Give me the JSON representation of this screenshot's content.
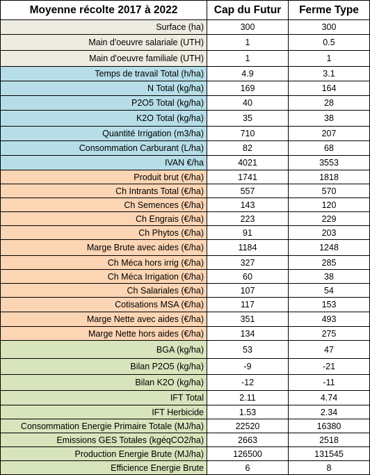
{
  "header": {
    "label_col": "Moyenne récolte 2017 à 2022",
    "col_a": "Cap du Futur",
    "col_b": "Ferme Type"
  },
  "colors": {
    "grey": "#eeece1",
    "blue": "#b7dee8",
    "orange": "#fcd5b4",
    "green": "#d8e4bc"
  },
  "rows": [
    {
      "label": "Surface (ha)",
      "a": "300",
      "b": "300"
    },
    {
      "label": "Main d'oeuvre salariale (UTH)",
      "a": "1",
      "b": "0.5"
    },
    {
      "label": "Main d'oeuvre familiale (UTH)",
      "a": "1",
      "b": "1"
    },
    {
      "label": "Temps de travail Total (h/ha)",
      "a": "4.9",
      "b": "3.1"
    },
    {
      "label": "N Total (kg/ha)",
      "a": "169",
      "b": "164"
    },
    {
      "label": "P2O5 Total (kg/ha)",
      "a": "40",
      "b": "28"
    },
    {
      "label": "K2O Total (kg/ha)",
      "a": "35",
      "b": "38"
    },
    {
      "label": "Quantité Irrigation (m3/ha)",
      "a": "710",
      "b": "207"
    },
    {
      "label": "Consommation Carburant (L/ha)",
      "a": "82",
      "b": "68"
    },
    {
      "label": "IVAN €/ha",
      "a": "4021",
      "b": "3553"
    },
    {
      "label": "Produit brut (€/ha)",
      "a": "1741",
      "b": "1818"
    },
    {
      "label": "Ch Intrants Total (€/ha)",
      "a": "557",
      "b": "570"
    },
    {
      "label": "Ch Semences (€/ha)",
      "a": "143",
      "b": "120"
    },
    {
      "label": "Ch Engrais (€/ha)",
      "a": "223",
      "b": "229"
    },
    {
      "label": "Ch Phytos (€/ha)",
      "a": "91",
      "b": "203"
    },
    {
      "label": "Marge Brute avec aides (€/ha)",
      "a": "1184",
      "b": "1248"
    },
    {
      "label": "Ch Méca hors irrig (€/ha)",
      "a": "327",
      "b": "285"
    },
    {
      "label": "Ch Méca Irrigation (€/ha)",
      "a": "60",
      "b": "38"
    },
    {
      "label": "Ch Salariales (€/ha)",
      "a": "107",
      "b": "54"
    },
    {
      "label": "Cotisations MSA (€/ha)",
      "a": "117",
      "b": "153"
    },
    {
      "label": "Marge Nette avec aides (€/ha)",
      "a": "351",
      "b": "493"
    },
    {
      "label": "Marge Nette hors aides (€/ha)",
      "a": "134",
      "b": "275"
    },
    {
      "label": "BGA (kg/ha)",
      "a": "53",
      "b": "47"
    },
    {
      "label": "Bilan P2O5 (kg/ha)",
      "a": "-9",
      "b": "-21"
    },
    {
      "label": "Bilan K2O (kg/ha)",
      "a": "-12",
      "b": "-11"
    },
    {
      "label": "IFT Total",
      "a": "2.11",
      "b": "4.74"
    },
    {
      "label": "IFT Herbicide",
      "a": "1.53",
      "b": "2.34"
    },
    {
      "label": "Consommation Energie Primaire Totale (MJ/ha)",
      "a": "22520",
      "b": "16380"
    },
    {
      "label": "Emissions GES Totales (kgéqCO2/ha)",
      "a": "2663",
      "b": "2518"
    },
    {
      "label": "Production Energie Brute (MJ/ha)",
      "a": "126500",
      "b": "131545"
    },
    {
      "label": "Efficience Energie Brute",
      "a": "6",
      "b": "8"
    }
  ]
}
